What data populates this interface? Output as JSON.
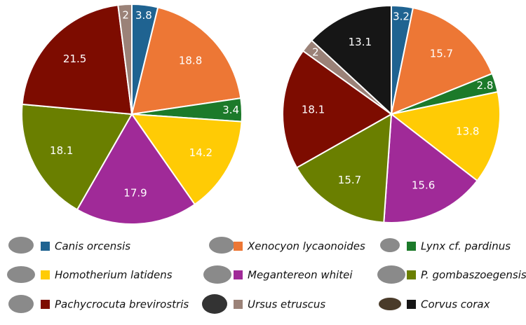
{
  "chart_data": {
    "type": "pie",
    "categories": [
      "Canis orcensis",
      "Xenocyon lycaonoides",
      "Lynx cf. pardinus",
      "Homotherium latidens",
      "Megantereon whitei",
      "P. gombaszoegensis",
      "Pachycrocuta brevirostris",
      "Ursus etruscus",
      "Corvus corax"
    ],
    "colors": [
      "#1f6391",
      "#ed7735",
      "#1c7a2a",
      "#ffcb05",
      "#a02a98",
      "#6a7f00",
      "#7d0c00",
      "#9b8278",
      "#161616"
    ],
    "series": [
      {
        "values": [
          3.8,
          18.8,
          3.4,
          14.2,
          17.9,
          18.1,
          21.5,
          2,
          null
        ]
      },
      {
        "values": [
          3.2,
          15.7,
          2.8,
          13.8,
          15.6,
          15.7,
          18.1,
          2,
          13.1
        ]
      }
    ]
  }
}
